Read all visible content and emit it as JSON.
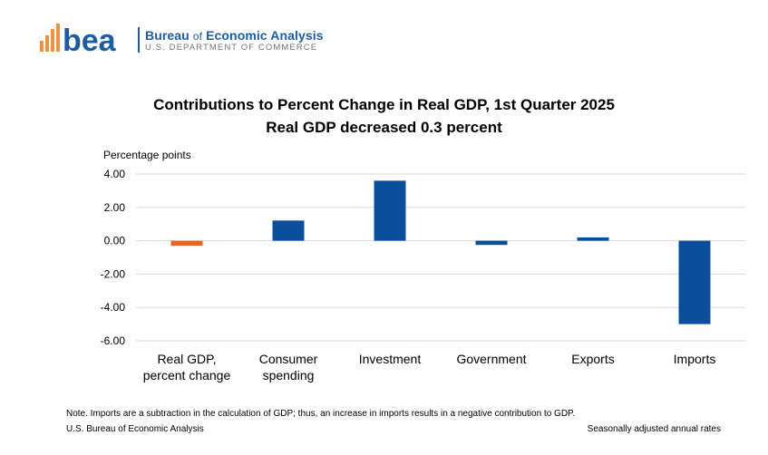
{
  "brand": {
    "logo_text": "bea",
    "name_part1": "Bureau",
    "name_of": "of",
    "name_part2": "Economic Analysis",
    "department": "U.S. DEPARTMENT OF COMMERCE"
  },
  "footer": {
    "note": "Note. Imports are a subtraction in the calculation of GDP; thus, an increase in imports results in a negative contribution to GDP.",
    "source": "U.S. Bureau of Economic Analysis",
    "rates": "Seasonally adjusted annual rates"
  },
  "colors": {
    "primary_bar": "#0b4f9c",
    "gdp_bar": "#e2682a",
    "grid": "#d9d9d9",
    "logo_blue": "#1a5ca8",
    "logo_orange": "#f2913c"
  },
  "chart_data": {
    "type": "bar",
    "title": "Contributions to Percent Change in Real GDP, 1st Quarter 2025",
    "subtitle": "Real GDP decreased 0.3 percent",
    "ylabel": "Percentage points",
    "xlabel": "",
    "ylim": [
      -6,
      4
    ],
    "yticks": [
      4,
      2,
      0,
      -2,
      -4,
      -6
    ],
    "ytick_labels": [
      "4.00",
      "2.00",
      "0.00",
      "-2.00",
      "-4.00",
      "-6.00"
    ],
    "grid": true,
    "legend": "none",
    "categories": [
      [
        "Real GDP,",
        "percent change"
      ],
      [
        "Consumer",
        "spending"
      ],
      [
        "Investment"
      ],
      [
        "Government"
      ],
      [
        "Exports"
      ],
      [
        "Imports"
      ]
    ],
    "values": [
      -0.3,
      1.21,
      3.6,
      -0.25,
      0.2,
      -5.0
    ]
  }
}
